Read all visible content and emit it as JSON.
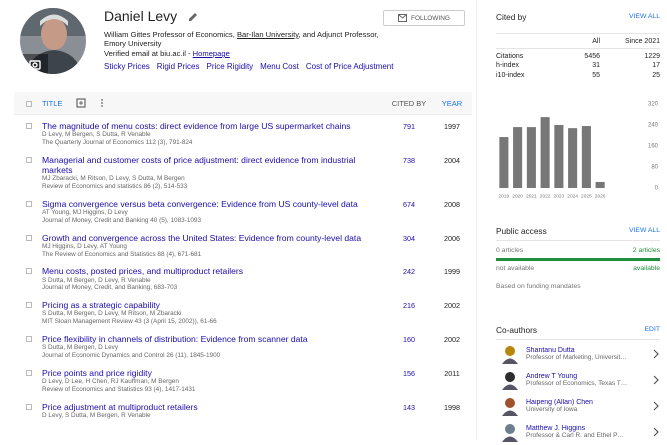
{
  "profile": {
    "name": "Daniel Levy",
    "affiliation": {
      "before": "William Gittes Professor of Economics,",
      "link": "Bar-Ilan University",
      "after": ", and Adjunct Professor, Emory University"
    },
    "email": "Verified email at biu.ac.il -",
    "homepage": "Homepage",
    "interests": [
      "Sticky Prices",
      "Rigid Prices",
      "Price Rigidity",
      "Menu Cost",
      "Cost of Price Adjustment"
    ],
    "follow_button": "FOLLOWING"
  },
  "table_header": {
    "title": "TITLE",
    "cited_by": "CITED BY",
    "year": "YEAR"
  },
  "articles": [
    {
      "title": "The magnitude of menu costs: direct evidence from large US supermarket chains",
      "authors": "D Levy, M Bergen, S Dutta, R Venable",
      "venue": "The Quarterly Journal of Economics 112 (3), 791-824",
      "cited_by": 791,
      "year": 1997
    },
    {
      "title": "Managerial and customer costs of price adjustment: direct evidence from industrial markets",
      "authors": "MJ Zbaracki, M Ritson, D Levy, S Dutta, M Bergen",
      "venue": "Review of Economics and statistics 86 (2), 514-533",
      "cited_by": 738,
      "year": 2004
    },
    {
      "title": "Sigma convergence versus beta convergence: Evidence from US county-level data",
      "authors": "AT Young, MJ Higgins, D Levy",
      "venue": "Journal of Money, Credit and Banking 40 (5), 1083-1093",
      "cited_by": 674,
      "year": 2008
    },
    {
      "title": "Growth and convergence across the United States: Evidence from county-level data",
      "authors": "MJ Higgins, D Levy, AT Young",
      "venue": "The Review of Economics and Statistics 88 (4), 671-681",
      "cited_by": 304,
      "year": 2006
    },
    {
      "title": "Menu costs, posted prices, and multiproduct retailers",
      "authors": "S Dutta, M Bergen, D Levy, R Venable",
      "venue": "Journal of Money, Credit, and Banking, 683-703",
      "cited_by": 242,
      "year": 1999
    },
    {
      "title": "Pricing as a strategic capability",
      "authors": "S Dutta, M Bergen, D Levy, M Ritson, M Zbaracki",
      "venue": "MIT Sloan Management Review 43 (3 (April 15, 2002)), 61-66",
      "cited_by": 216,
      "year": 2002
    },
    {
      "title": "Price flexibility in channels of distribution: Evidence from scanner data",
      "authors": "S Dutta, M Bergen, D Levy",
      "venue": "Journal of Economic Dynamics and Control 26 (11), 1845-1900",
      "cited_by": 160,
      "year": 2002
    },
    {
      "title": "Price points and price rigidity",
      "authors": "D Levy, D Lee, H Chen, RJ Kauffman, M Bergen",
      "venue": "Review of Economics and Statistics 93 (4), 1417-1431",
      "cited_by": 156,
      "year": 2011
    },
    {
      "title": "Price adjustment at multiproduct retailers",
      "authors": "D Levy, S Dutta, M Bergen, R Venable",
      "cited_by": 143,
      "year": 1998
    }
  ],
  "cited_by": {
    "heading": "Cited by",
    "view_all": "VIEW ALL",
    "columns": [
      "All",
      "Since 2021"
    ],
    "rows": [
      {
        "label": "Citations",
        "all": 5456,
        "since": 1229
      },
      {
        "label": "h-index",
        "all": 31,
        "since": 17
      },
      {
        "label": "i10-index",
        "all": 55,
        "since": 25
      }
    ],
    "chart": {
      "type": "bar",
      "categories": [
        "2019",
        "2020",
        "2021",
        "2022",
        "2023",
        "2024",
        "2025",
        "2026"
      ],
      "values": [
        194,
        232,
        232,
        270,
        240,
        228,
        236,
        23
      ],
      "color": "#777777",
      "ylim": [
        0,
        320
      ],
      "yticks": [
        0,
        80,
        160,
        240,
        320
      ]
    }
  },
  "public_access": {
    "heading": "Public access",
    "view_all": "VIEW ALL",
    "not_available_count": "0 articles",
    "available_count": "2 articles",
    "not_available_label": "not available",
    "available_label": "available",
    "note": "Based on funding mandates"
  },
  "coauthors": {
    "heading": "Co-authors",
    "edit": "EDIT",
    "people": [
      {
        "name": "Shantanu Dutta",
        "affiliation": "Professor of Marketing, Universit…"
      },
      {
        "name": "Andrew T Young",
        "affiliation": "Professor of Economics, Texas T…"
      },
      {
        "name": "Haipeng (Allan) Chen",
        "affiliation": "University of Iowa"
      },
      {
        "name": "Matthew J. Higgins",
        "affiliation": "Professor & Carl R. and Ethel P…"
      }
    ]
  }
}
